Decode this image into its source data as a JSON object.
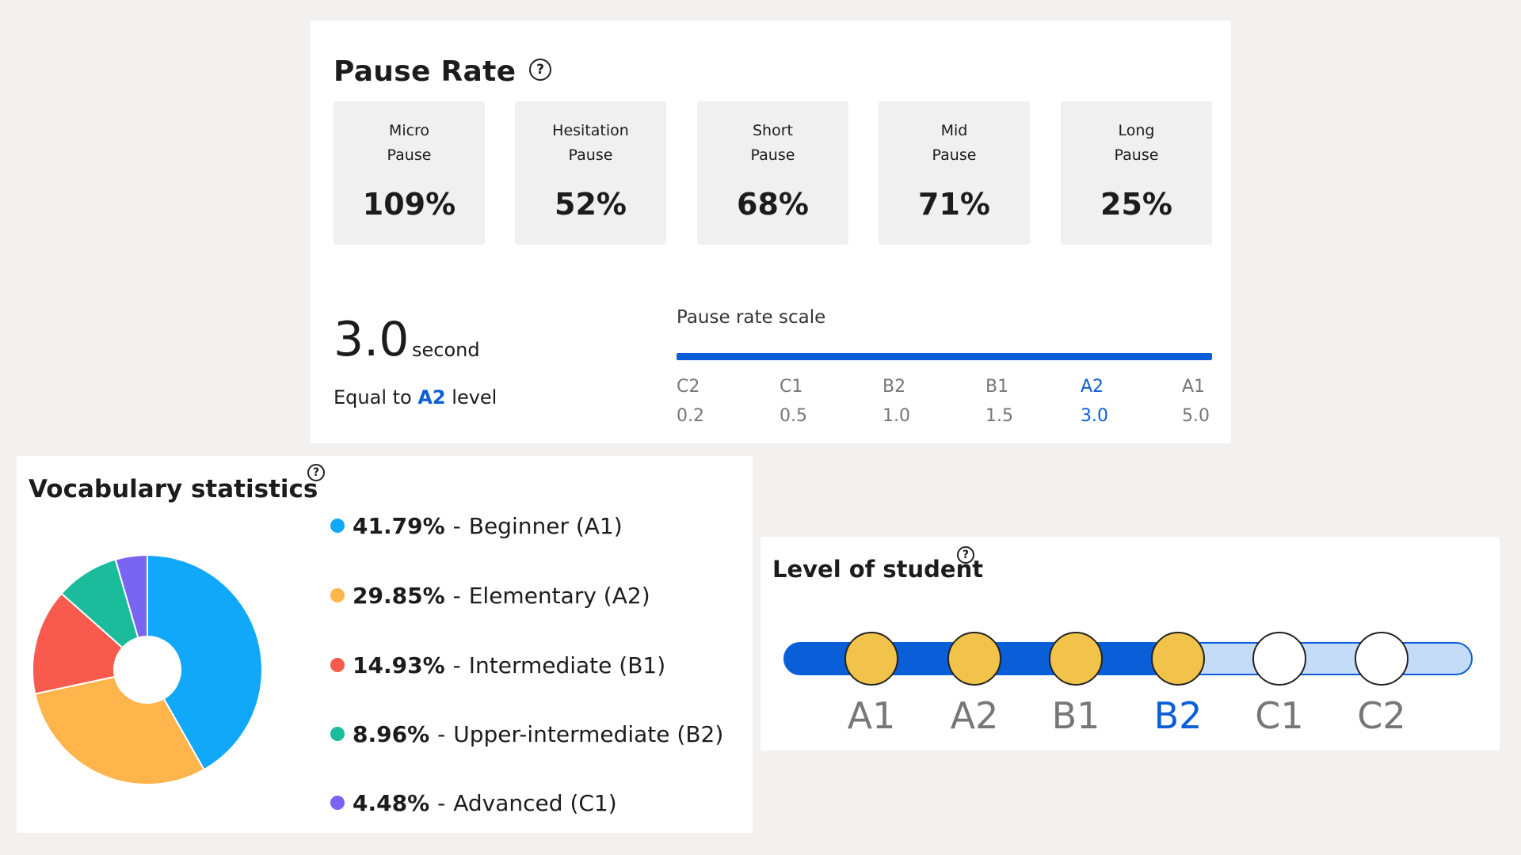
{
  "pause_rate": {
    "title": "Pause Rate",
    "help_icon": "?",
    "boxes": [
      {
        "label": "Micro\nPause",
        "value": "109%"
      },
      {
        "label": "Hesitation\nPause",
        "value": "52%"
      },
      {
        "label": "Short\nPause",
        "value": "68%"
      },
      {
        "label": "Mid\nPause",
        "value": "71%"
      },
      {
        "label": "Long\nPause",
        "value": "25%"
      }
    ],
    "seconds_value": "3.0",
    "seconds_unit": "second",
    "equal_prefix": "Equal to",
    "equal_level": "A2",
    "equal_suffix": "level",
    "scale_title": "Pause rate scale",
    "scale": [
      {
        "level": "C2",
        "value": "0.2"
      },
      {
        "level": "C1",
        "value": "0.5"
      },
      {
        "level": "B2",
        "value": "1.0"
      },
      {
        "level": "B1",
        "value": "1.5"
      },
      {
        "level": "A2",
        "value": "3.0"
      },
      {
        "level": "A1",
        "value": "5.0"
      }
    ],
    "active_scale_index": 4,
    "accent_color": "#0a5ed7"
  },
  "vocabulary": {
    "title": "Vocabulary statistics",
    "help_icon": "?",
    "chart_data": {
      "type": "pie",
      "values": [
        41.79,
        29.85,
        14.93,
        8.96,
        4.48
      ],
      "percent_labels": [
        "41.79%",
        "29.85%",
        "14.93%",
        "8.96%",
        "4.48%"
      ],
      "categories": [
        "Beginner (A1)",
        "Elementary (A2)",
        "Intermediate (B1)",
        "Upper-intermediate (B2)",
        "Advanced (C1)"
      ],
      "colors": [
        "#12a8fa",
        "#ffb54c",
        "#f85a4e",
        "#1bbc9b",
        "#7a65f2"
      ],
      "legend": "right"
    }
  },
  "level_of_student": {
    "title": "Level of student",
    "help_icon": "?",
    "levels": [
      "A1",
      "A2",
      "B1",
      "B2",
      "C1",
      "C2"
    ],
    "current_index": 3,
    "colors": {
      "active_track": "#0a5ed7",
      "inactive_track": "#c5dcf8",
      "reached_dot": "#f2c34b",
      "unreached_dot": "#ffffff",
      "current_label": "#0a5ed7",
      "label": "#777777"
    }
  }
}
